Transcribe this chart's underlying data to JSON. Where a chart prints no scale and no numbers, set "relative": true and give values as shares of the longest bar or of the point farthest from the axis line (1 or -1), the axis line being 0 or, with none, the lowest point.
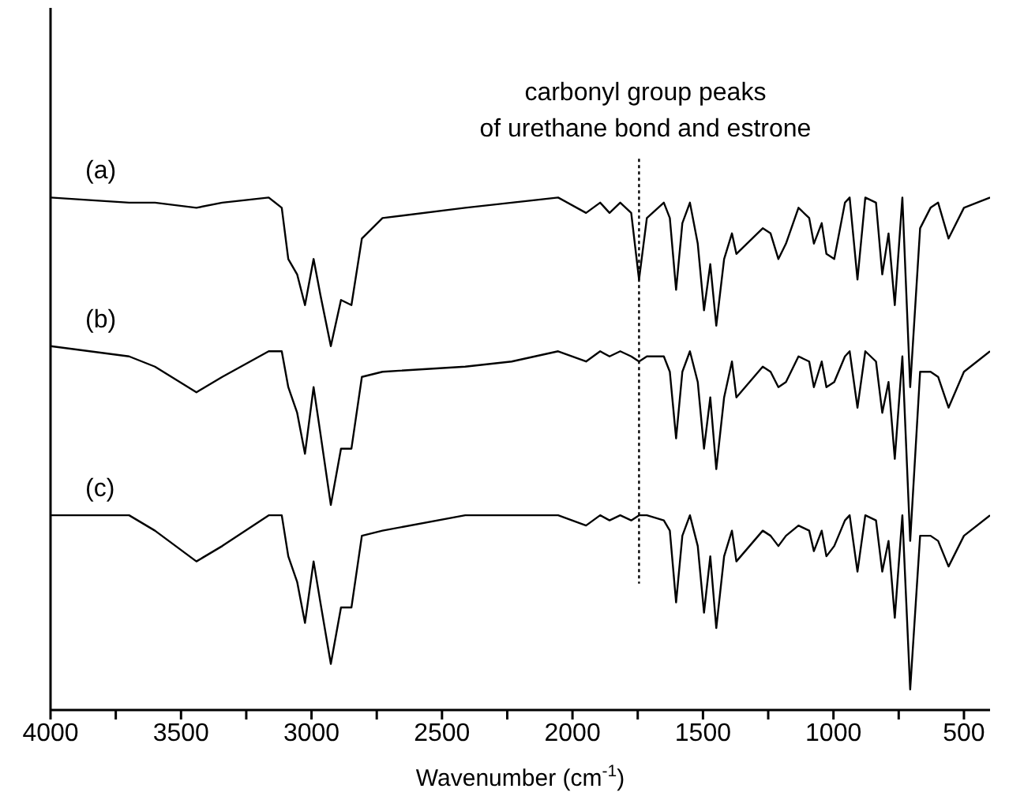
{
  "chart_data": {
    "type": "line",
    "relative": true,
    "xlabel": "Wavenumber (cm$^{-1}$)",
    "xlim": [
      4000,
      400
    ],
    "xticks": [
      4000,
      {
        "value": 3750,
        "label": null
      },
      3500,
      {
        "value": 3250,
        "label": null
      },
      3000,
      {
        "value": 2750,
        "label": null
      },
      2500,
      {
        "value": 2250,
        "label": null
      },
      2000,
      {
        "value": 1750,
        "label": null
      },
      1500,
      {
        "value": 1250,
        "label": null
      },
      1000,
      {
        "value": 750,
        "label": null
      },
      500
    ],
    "grid": false,
    "legend": false,
    "marker": "none",
    "line_style": "solid",
    "tick_labels": "x",
    "x": [
      4000,
      3699,
      3600,
      3441,
      3342,
      3164,
      3114,
      3089,
      3055,
      3025,
      2992,
      2966,
      2926,
      2887,
      2847,
      2807,
      2728,
      2411,
      2233,
      2055,
      1948,
      1894,
      1858,
      1817,
      1775,
      1745,
      1715,
      1650,
      1627,
      1603,
      1579,
      1550,
      1520,
      1496,
      1472,
      1449,
      1419,
      1389,
      1372,
      1271,
      1241,
      1211,
      1182,
      1134,
      1093,
      1075,
      1045,
      1027,
      997,
      956,
      938,
      908,
      878,
      837,
      813,
      789,
      765,
      736,
      706,
      668,
      628,
      599,
      559,
      500,
      400
    ],
    "series": [
      {
        "name": "(a)",
        "color": "#000000",
        "values": [
          1.0,
          0.99,
          0.99,
          0.98,
          0.99,
          1.0,
          0.98,
          0.88,
          0.85,
          0.79,
          0.88,
          0.81,
          0.71,
          0.8,
          0.79,
          0.92,
          0.96,
          0.98,
          0.99,
          1.0,
          0.97,
          0.99,
          0.97,
          0.99,
          0.97,
          0.84,
          0.96,
          0.99,
          0.96,
          0.82,
          0.95,
          0.99,
          0.91,
          0.78,
          0.87,
          0.75,
          0.88,
          0.93,
          0.89,
          0.94,
          0.93,
          0.88,
          0.91,
          0.98,
          0.96,
          0.91,
          0.95,
          0.89,
          0.88,
          0.99,
          1.0,
          0.84,
          1.0,
          0.99,
          0.85,
          0.93,
          0.79,
          1.0,
          0.63,
          0.94,
          0.98,
          0.99,
          0.92,
          0.98,
          1.0
        ]
      },
      {
        "name": "(b)",
        "color": "#000000",
        "values": [
          0.71,
          0.69,
          0.67,
          0.62,
          0.65,
          0.7,
          0.7,
          0.63,
          0.58,
          0.5,
          0.63,
          0.54,
          0.4,
          0.51,
          0.51,
          0.65,
          0.66,
          0.67,
          0.68,
          0.7,
          0.68,
          0.7,
          0.69,
          0.7,
          0.69,
          0.68,
          0.69,
          0.69,
          0.66,
          0.53,
          0.66,
          0.7,
          0.64,
          0.51,
          0.61,
          0.47,
          0.61,
          0.68,
          0.61,
          0.67,
          0.66,
          0.63,
          0.64,
          0.69,
          0.68,
          0.63,
          0.68,
          0.63,
          0.64,
          0.69,
          0.7,
          0.59,
          0.7,
          0.68,
          0.58,
          0.64,
          0.49,
          0.69,
          0.33,
          0.66,
          0.66,
          0.65,
          0.59,
          0.66,
          0.7
        ]
      },
      {
        "name": "(c)",
        "color": "#000000",
        "values": [
          0.38,
          0.38,
          0.35,
          0.29,
          0.32,
          0.38,
          0.38,
          0.3,
          0.25,
          0.17,
          0.29,
          0.21,
          0.09,
          0.2,
          0.2,
          0.34,
          0.35,
          0.38,
          0.38,
          0.38,
          0.36,
          0.38,
          0.37,
          0.38,
          0.37,
          0.38,
          0.38,
          0.37,
          0.35,
          0.21,
          0.34,
          0.38,
          0.32,
          0.19,
          0.3,
          0.16,
          0.3,
          0.35,
          0.29,
          0.35,
          0.34,
          0.32,
          0.34,
          0.36,
          0.35,
          0.31,
          0.35,
          0.3,
          0.32,
          0.37,
          0.38,
          0.27,
          0.38,
          0.37,
          0.27,
          0.33,
          0.18,
          0.38,
          0.04,
          0.34,
          0.34,
          0.33,
          0.28,
          0.34,
          0.38
        ]
      }
    ],
    "ref_lines": [
      {
        "axis": "x",
        "value": 1745,
        "label": "carbonyl group peaks\nof urethane bond and estrone",
        "color": "#000000",
        "line_style": "dotted"
      }
    ]
  }
}
